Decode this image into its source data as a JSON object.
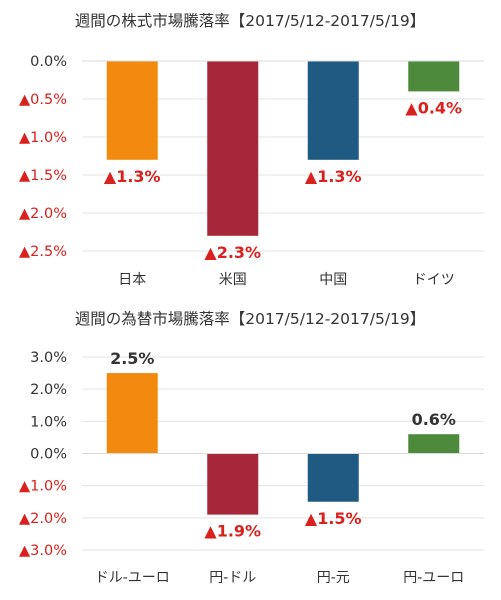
{
  "chart_data": [
    {
      "type": "bar",
      "title": "週間の株式市場騰落率【2017/5/12-2017/5/19】",
      "categories": [
        "日本",
        "米国",
        "中国",
        "ドイツ"
      ],
      "values": [
        -1.3,
        -2.3,
        -1.3,
        -0.4
      ],
      "value_labels": [
        "▲1.3%",
        "▲2.3%",
        "▲1.3%",
        "▲0.4%"
      ],
      "colors": [
        "#f28a0f",
        "#a52739",
        "#1e5a82",
        "#4e8a3c"
      ],
      "ylim": [
        -2.5,
        0.0
      ],
      "yticks": [
        0.0,
        -0.5,
        -1.0,
        -1.5,
        -2.0,
        -2.5
      ],
      "ytick_labels": [
        "0.0%",
        "▲0.5%",
        "▲1.0%",
        "▲1.5%",
        "▲2.0%",
        "▲2.5%"
      ],
      "grid": true,
      "negative_label_color": "#d9211e",
      "positive_label_color": "#333333"
    },
    {
      "type": "bar",
      "title": "週間の為替市場騰落率【2017/5/12-2017/5/19】",
      "categories": [
        "ドル-ユーロ",
        "円-ドル",
        "円-元",
        "円-ユーロ"
      ],
      "values": [
        2.5,
        -1.9,
        -1.5,
        0.6
      ],
      "value_labels": [
        "2.5%",
        "▲1.9%",
        "▲1.5%",
        "0.6%"
      ],
      "colors": [
        "#f28a0f",
        "#a52739",
        "#1e5a82",
        "#4e8a3c"
      ],
      "ylim": [
        -3.0,
        3.0
      ],
      "yticks": [
        3.0,
        2.0,
        1.0,
        0.0,
        -1.0,
        -2.0,
        -3.0
      ],
      "ytick_labels": [
        "3.0%",
        "2.0%",
        "1.0%",
        "0.0%",
        "▲1.0%",
        "▲2.0%",
        "▲3.0%"
      ],
      "grid": true,
      "negative_label_color": "#d9211e",
      "positive_label_color": "#333333"
    }
  ]
}
